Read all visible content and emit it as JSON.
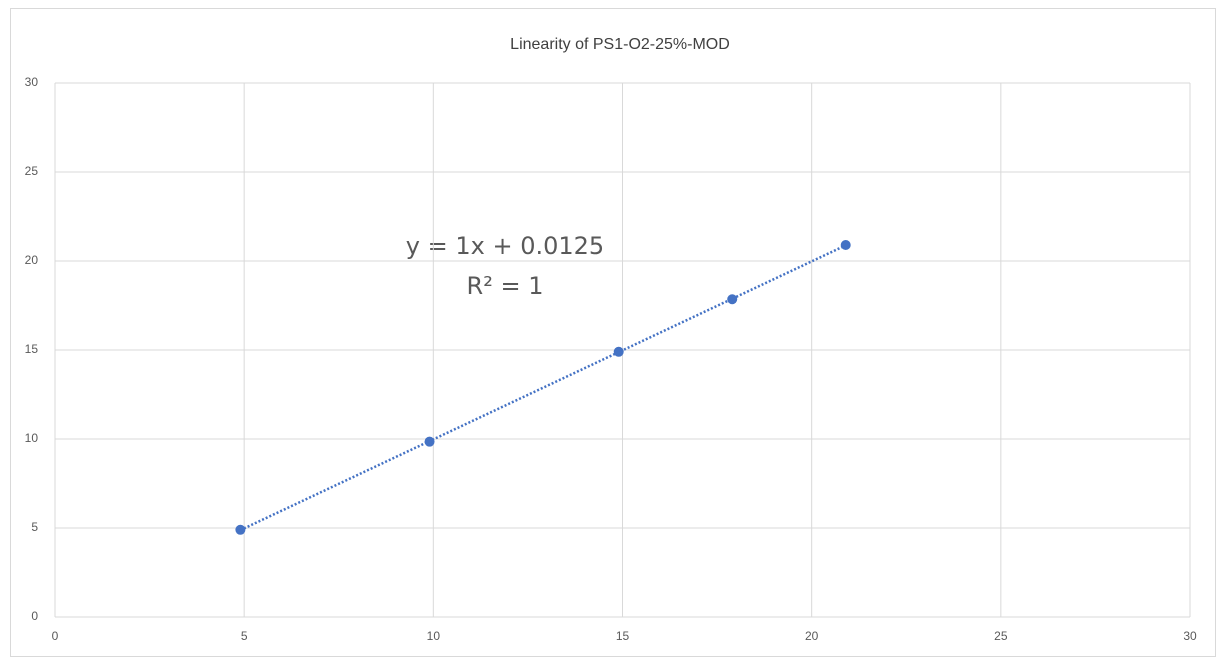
{
  "chart_data": {
    "type": "scatter",
    "title": "Linearity of PS1-O2-25%-MOD",
    "x": [
      4.9,
      9.9,
      14.9,
      17.9,
      20.9
    ],
    "series": [
      {
        "color": "#4472c4",
        "values": [
          4.9,
          9.85,
          14.9,
          17.85,
          20.9
        ]
      }
    ],
    "trendline": {
      "style": "dotted"
    },
    "annotations": [
      "y = 1x + 0.0125",
      "R² = 1"
    ],
    "xlim": [
      0,
      30
    ],
    "xticks": [
      0,
      5,
      10,
      15,
      20,
      25,
      30
    ],
    "ylim": [
      0,
      30
    ],
    "yticks": [
      0,
      5,
      10,
      15,
      20,
      25,
      30
    ],
    "grid": true
  }
}
